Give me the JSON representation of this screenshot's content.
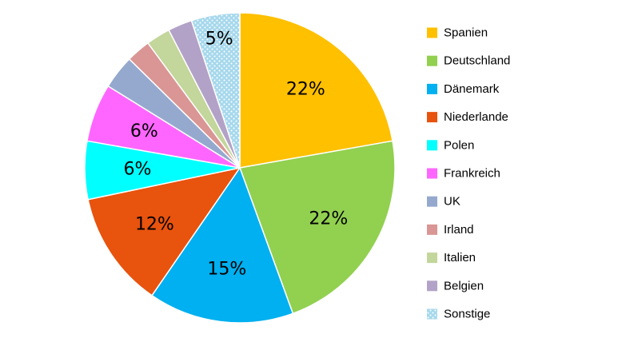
{
  "chart_data": {
    "type": "pie",
    "title": "",
    "legend_position": "right",
    "slices": [
      {
        "name": "Spanien",
        "value": 22,
        "label": "22%",
        "color": "#FFC000"
      },
      {
        "name": "Deutschland",
        "value": 22,
        "label": "22%",
        "color": "#92D050"
      },
      {
        "name": "Dänemark",
        "value": 15,
        "label": "15%",
        "color": "#00B0F0"
      },
      {
        "name": "Niederlande",
        "value": 12,
        "label": "12%",
        "color": "#E8530E"
      },
      {
        "name": "Polen",
        "value": 6,
        "label": "6%",
        "color": "#00FFFF"
      },
      {
        "name": "Frankreich",
        "value": 6,
        "label": "6%",
        "color": "#FF66FF"
      },
      {
        "name": "UK",
        "value": 3.5,
        "label": "",
        "color": "#95A9CF"
      },
      {
        "name": "Irland",
        "value": 2.5,
        "label": "",
        "color": "#D99694"
      },
      {
        "name": "Italien",
        "value": 2.5,
        "label": "",
        "color": "#C3D69B"
      },
      {
        "name": "Belgien",
        "value": 2.5,
        "label": "",
        "color": "#B3A2C7"
      },
      {
        "name": "Sonstige",
        "value": 5,
        "label": "5%",
        "color": "#A6D8EC",
        "pattern": "dots"
      }
    ]
  }
}
